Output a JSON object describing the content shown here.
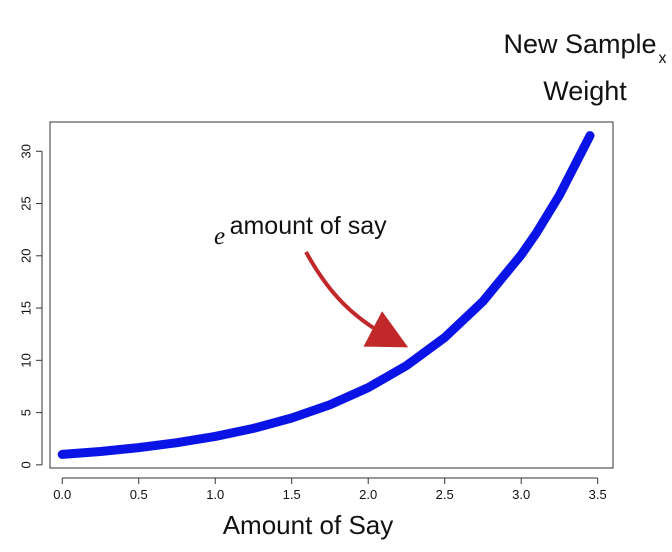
{
  "header": {
    "title_line1": "New Sample",
    "title_line2": "Weight",
    "title_suffix": "x"
  },
  "chart_data": {
    "type": "line",
    "title": "",
    "xlabel": "Amount of Say",
    "ylabel": "",
    "xlim": [
      -0.08,
      3.6
    ],
    "ylim": [
      -0.3,
      32.8
    ],
    "x_ticks": [
      "0.0",
      "0.5",
      "1.0",
      "1.5",
      "2.0",
      "2.5",
      "3.0",
      "3.5"
    ],
    "y_ticks": [
      "0",
      "5",
      "10",
      "15",
      "20",
      "25",
      "30"
    ],
    "grid": false,
    "legend": "none",
    "series": [
      {
        "x": [
          0.0,
          0.25,
          0.5,
          0.75,
          1.0,
          1.25,
          1.5,
          1.75,
          2.0,
          2.25,
          2.5,
          2.75,
          3.0,
          3.1,
          3.25,
          3.45
        ],
        "y": [
          1.0,
          1.28,
          1.65,
          2.12,
          2.72,
          3.49,
          4.48,
          5.75,
          7.39,
          9.49,
          12.18,
          15.64,
          20.09,
          22.2,
          25.8,
          31.5
        ]
      }
    ],
    "annotations": [
      {
        "base": "e",
        "superscript": "amount of say"
      }
    ],
    "colors": {
      "line": "#0a14e6",
      "arrow": "#c0282a",
      "axis": "#333333",
      "text": "#111111"
    }
  }
}
